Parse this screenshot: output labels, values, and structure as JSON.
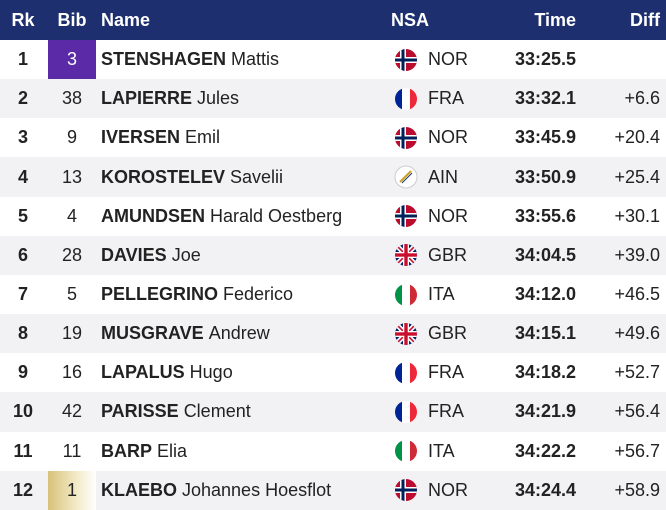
{
  "header": {
    "rk": "Rk",
    "bib": "Bib",
    "name": "Name",
    "nsa": "NSA",
    "time": "Time",
    "diff": "Diff"
  },
  "rows": [
    {
      "rk": "1",
      "bib": "3",
      "surname": "STENSHAGEN",
      "given": "Mattis",
      "nsa": "NOR",
      "time": "33:25.5"
    },
    {
      "rk": "2",
      "bib": "38",
      "surname": "LAPIERRE",
      "given": "Jules",
      "nsa": "FRA",
      "time": "33:32.1",
      "diff": "+6.6"
    },
    {
      "rk": "3",
      "bib": "9",
      "surname": "IVERSEN",
      "given": "Emil",
      "nsa": "NOR",
      "time": "33:45.9",
      "diff": "+20.4"
    },
    {
      "rk": "4",
      "bib": "13",
      "surname": "KOROSTELEV",
      "given": "Savelii",
      "nsa": "AIN",
      "time": "33:50.9",
      "diff": "+25.4"
    },
    {
      "rk": "5",
      "bib": "4",
      "surname": "AMUNDSEN",
      "given": "Harald Oestberg",
      "nsa": "NOR",
      "time": "33:55.6",
      "diff": "+30.1"
    },
    {
      "rk": "6",
      "bib": "28",
      "surname": "DAVIES",
      "given": "Joe",
      "nsa": "GBR",
      "time": "34:04.5",
      "diff": "+39.0"
    },
    {
      "rk": "7",
      "bib": "5",
      "surname": "PELLEGRINO",
      "given": "Federico",
      "nsa": "ITA",
      "time": "34:12.0",
      "diff": "+46.5"
    },
    {
      "rk": "8",
      "bib": "19",
      "surname": "MUSGRAVE",
      "given": "Andrew",
      "nsa": "GBR",
      "time": "34:15.1",
      "diff": "+49.6"
    },
    {
      "rk": "9",
      "bib": "16",
      "surname": "LAPALUS",
      "given": "Hugo",
      "nsa": "FRA",
      "time": "34:18.2",
      "diff": "+52.7"
    },
    {
      "rk": "10",
      "bib": "42",
      "surname": "PARISSE",
      "given": "Clement",
      "nsa": "FRA",
      "time": "34:21.9",
      "diff": "+56.4"
    },
    {
      "rk": "11",
      "bib": "11",
      "surname": "BARP",
      "given": "Elia",
      "nsa": "ITA",
      "time": "34:22.2",
      "diff": "+56.7"
    },
    {
      "rk": "12",
      "bib": "1",
      "surname": "KLAEBO",
      "given": "Johannes Hoesflot",
      "nsa": "NOR",
      "time": "34:24.4",
      "diff": "+58.9"
    }
  ]
}
